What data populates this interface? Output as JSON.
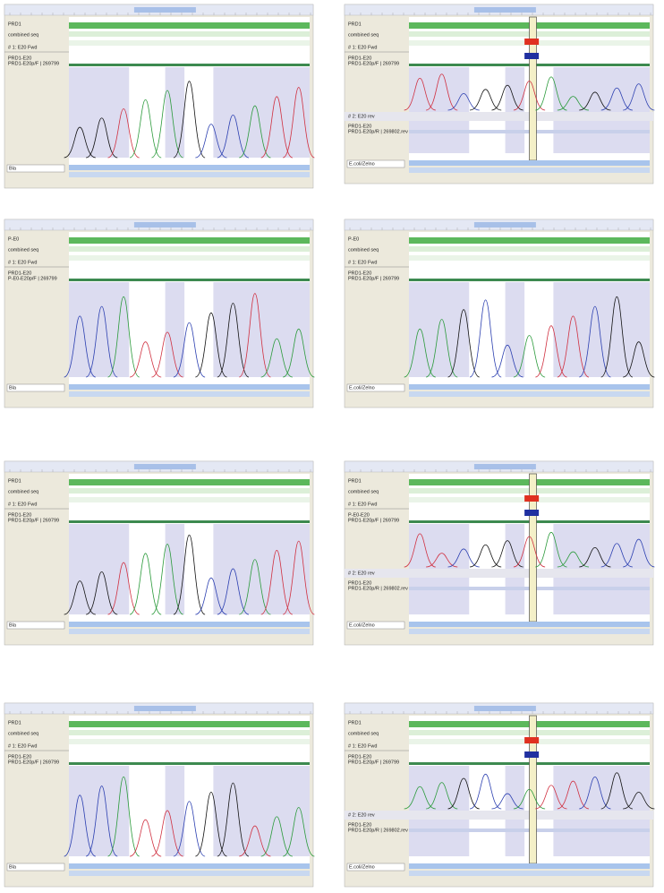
{
  "panels": [
    {
      "tracks": [
        "PRD1",
        "combined seq",
        "# 1: E20 Fwd",
        "PRD1-E20",
        "PRD1-E20p/F | 269799"
      ],
      "box": "Bla"
    },
    {
      "tracks": [
        "PRD1",
        "combined seq",
        "# 1: E20 Fwd",
        "PRD1-E20",
        "PRD1-E20p/F | 269799",
        "# 2: E20 rev",
        "PRD1-E20",
        "PRD1-E20p/R | 269802.rev"
      ],
      "box": "E.coli/Zelno"
    },
    {
      "tracks": [
        "P-E0",
        "combined seq",
        "# 1: E20 Fwd",
        "PRD1-E20",
        "P-E0-E20p/F | 269799"
      ],
      "box": "Bla"
    },
    {
      "tracks": [
        "P-E0",
        "combined seq",
        "# 1: E20 Fwd",
        "PRD1-E20",
        "PRD1-E20p/F | 269799"
      ],
      "box": "E.coli/Zelno"
    },
    {
      "tracks": [
        "PRD1",
        "combined seq",
        "# 1: E20 Fwd",
        "PRD1-E20",
        "PRD1-E20p/F | 269799"
      ],
      "box": "Bla"
    },
    {
      "tracks": [
        "PRD1",
        "combined seq",
        "# 1: E20 Fwd",
        "P-E0-E20",
        "PRD1-E20p/F | 269799",
        "# 2: E20 rev",
        "PRD1-E20",
        "PRD1-E20p/R | 269802.rev"
      ],
      "box": "E.coli/Zelno"
    },
    {
      "tracks": [
        "PRD1",
        "combined seq",
        "# 1: E20 Fwd",
        "PRD1-E20",
        "PRD1-E20p/F | 269799"
      ],
      "box": "Bla"
    },
    {
      "tracks": [
        "PRD1",
        "combined seq",
        "# 1: E20 Fwd",
        "PRD1-E20",
        "PRD1-E20p/F | 269799",
        "# 2: E20 rev",
        "PRD1-E20",
        "PRD1-E20p/R | 269802.rev"
      ],
      "box": "E.coli/Zelno"
    }
  ]
}
